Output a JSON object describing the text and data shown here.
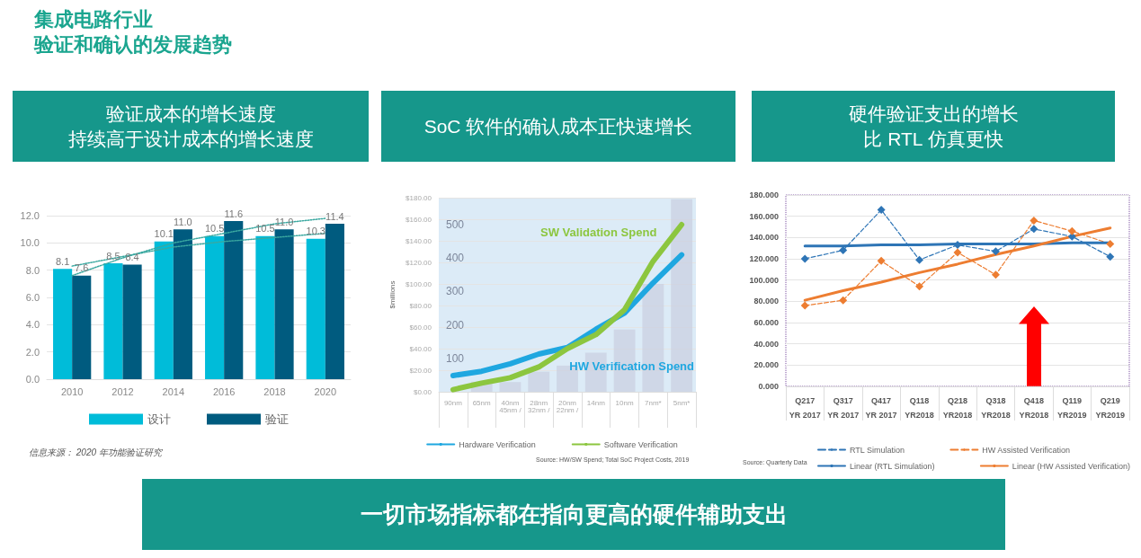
{
  "chart_data": [
    {
      "type": "other",
      "title": "集成电路行业",
      "subtitle": "验证和确认的发展趋势"
    },
    {
      "type": "bar",
      "title": "验证成本的增长速度",
      "subtitle": "持续高于设计成本的增长速度",
      "categories": [
        "2010",
        "2012",
        "2014",
        "2016",
        "2018",
        "2020"
      ],
      "series": [
        {
          "name": "设计",
          "color": "#00bcd9",
          "values": [
            8.1,
            8.5,
            10.1,
            10.5,
            10.5,
            10.3
          ],
          "value_labels": [
            "8.1",
            "8.5",
            "10.1",
            "10.5",
            "10.5",
            "10.3"
          ]
        },
        {
          "name": "验证",
          "color": "#005b7f",
          "values": [
            7.6,
            8.4,
            11.0,
            11.6,
            11.0,
            11.4
          ],
          "value_labels": [
            "7.6",
            "8.4",
            "11.0",
            "11.6",
            "11.0",
            "11.4"
          ]
        },
        {
          "type": "line",
          "color": "#3aa8a0",
          "line_style": "dotted",
          "values": [
            8.3,
            9.0,
            9.7,
            10.1,
            10.4,
            10.7
          ]
        },
        {
          "type": "line",
          "color": "#3aa8a0",
          "line_style": "dotted",
          "values": [
            7.6,
            8.9,
            10.0,
            10.7,
            11.4,
            11.8
          ]
        }
      ],
      "ylim": [
        0,
        12
      ],
      "yticks": [
        {
          "value": 0,
          "label": "0.0"
        },
        {
          "value": 2,
          "label": "2.0"
        },
        {
          "value": 4,
          "label": "4.0"
        },
        {
          "value": 6,
          "label": "6.0"
        },
        {
          "value": 8,
          "label": "8.0"
        },
        {
          "value": 10,
          "label": "10.0"
        },
        {
          "value": 12,
          "label": "12.0"
        }
      ],
      "grid": "y",
      "legend": "bottom",
      "annotations": [
        "信息来源： 2020 年功能验证研究"
      ]
    },
    {
      "type": "line",
      "title": "SoC 软件的确认成本正快速增长",
      "ylabel": "$millions",
      "categories": [
        "90nm",
        "65nm",
        "40nm\n45nm /",
        "28nm\n32nm /",
        "20nm\n22nm /",
        "14nm",
        "10nm",
        "7nm*",
        "5nm*"
      ],
      "series": [
        {
          "name": "Hardware Verification",
          "color": "#1fa7e0",
          "values": [
            15,
            19,
            26,
            35,
            41,
            58,
            73,
            101,
            127
          ]
        },
        {
          "name": "Software Verification",
          "color": "#8cc63f",
          "values": [
            2,
            8,
            13,
            23,
            40,
            53,
            76,
            121,
            155
          ]
        },
        {
          "type": "bar",
          "axis": "y2",
          "color": "#c9cfe0",
          "values": [
            null,
            30,
            29,
            60,
            78,
            117,
            186,
            322,
            575
          ]
        }
      ],
      "ylim": [
        0,
        180
      ],
      "yticks": [
        {
          "value": 0,
          "label": "$0.00"
        },
        {
          "value": 20,
          "label": "$20.00"
        },
        {
          "value": 40,
          "label": "$40.00"
        },
        {
          "value": 60,
          "label": "$60.00"
        },
        {
          "value": 80,
          "label": "$80.00"
        },
        {
          "value": 100,
          "label": "$100.00"
        },
        {
          "value": 120,
          "label": "$120.00"
        },
        {
          "value": 140,
          "label": "$140.00"
        },
        {
          "value": 160,
          "label": "$160.00"
        },
        {
          "value": 180,
          "label": "$180.00"
        }
      ],
      "y2lim": [
        0,
        580
      ],
      "y2ticks": [
        100,
        200,
        300,
        400,
        500
      ],
      "grid": "y",
      "legend": "bottom",
      "annotations": [
        "HW Verification Spend",
        "SW Validation Spend",
        "Source: HW/SW Spend; Total SoC Project Costs, 2019"
      ]
    },
    {
      "type": "line",
      "title": "硬件验证支出的增长",
      "subtitle": "比 RTL 仿真更快",
      "categories": [
        "Q217\nYR 2017",
        "Q317\nYR 2017",
        "Q417\nYR 2017",
        "Q118\nYR2018",
        "Q218\nYR2018",
        "Q318\nYR2018",
        "Q418\nYR2018",
        "Q119\nYR2019",
        "Q219\nYR2019"
      ],
      "series": [
        {
          "name": "RTL Simulation",
          "color": "#2e75b6",
          "marker": "diamond",
          "line_style": "dashed",
          "values": [
            120,
            128,
            166,
            119,
            133,
            127,
            148,
            141,
            122
          ]
        },
        {
          "name": "HW Assisted Verification",
          "color": "#ed7d31",
          "marker": "diamond",
          "line_style": "dashed",
          "values": [
            76,
            81,
            118,
            94,
            126,
            105,
            156,
            146,
            134
          ]
        },
        {
          "name": "Linear (RTL Simulation)",
          "color": "#2e75b6",
          "marker": "none",
          "line_style": "solid",
          "values": [
            132,
            132,
            133,
            133,
            134,
            134,
            134,
            135,
            135
          ]
        },
        {
          "name": "Linear (HW Assisted Verification)",
          "color": "#ed7d31",
          "marker": "none",
          "line_style": "solid",
          "values": [
            81,
            90,
            98,
            107,
            115,
            124,
            132,
            141,
            149
          ]
        }
      ],
      "ylim": [
        0,
        180
      ],
      "yticks": [
        {
          "value": 0,
          "label": "0.000"
        },
        {
          "value": 20,
          "label": "20.000"
        },
        {
          "value": 40,
          "label": "40.000"
        },
        {
          "value": 60,
          "label": "60.000"
        },
        {
          "value": 80,
          "label": "80.000"
        },
        {
          "value": 100,
          "label": "100.000"
        },
        {
          "value": 120,
          "label": "120.000"
        },
        {
          "value": 140,
          "label": "140.000"
        },
        {
          "value": 160,
          "label": "160.000"
        },
        {
          "value": 180,
          "label": "180.000"
        }
      ],
      "grid": "y",
      "legend": "bottom",
      "annotations": [
        "Source: Quarterly Data"
      ]
    },
    {
      "type": "other",
      "title": "一切市场指标都在指向更高的硬件辅助支出"
    }
  ]
}
